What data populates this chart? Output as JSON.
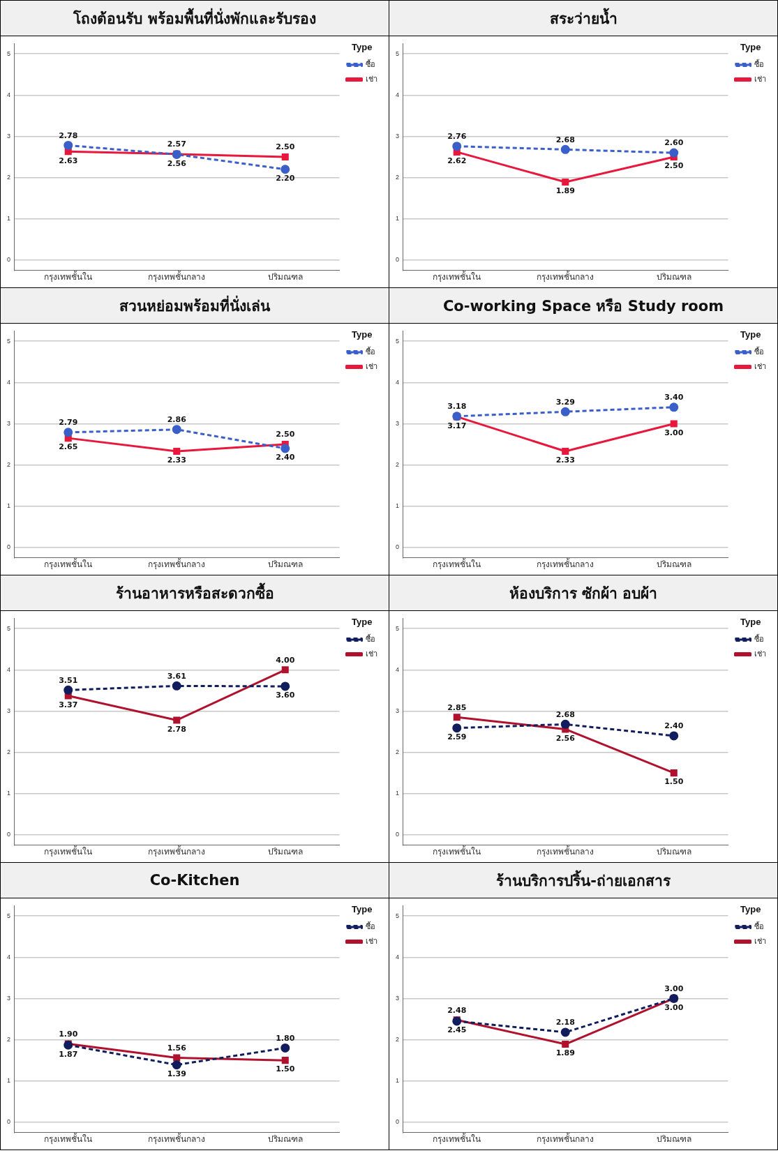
{
  "chart_data": [
    {
      "type": "line",
      "title": "โถงต้อนรับ พร้อมพื้นที่นั่งพักและรับรอง",
      "categories": [
        "กรุงเทพชั้นใน",
        "กรุงเทพชั้นกลาง",
        "ปริมณฑล"
      ],
      "legend_title": "Type",
      "legend": "top right",
      "grid": "y",
      "ylim": [
        -0.25,
        5.25
      ],
      "yticks": [
        0,
        1,
        2,
        3,
        4,
        5
      ],
      "series": [
        {
          "name": "ซื้อ",
          "color": "#3a5fc8",
          "values": [
            2.78,
            2.56,
            2.2
          ],
          "value_labels": [
            "2.78",
            "2.56",
            "2.20"
          ],
          "marker": "circle",
          "line_style": "dashed"
        },
        {
          "name": "เช่า",
          "color": "#e8173c",
          "values": [
            2.63,
            2.57,
            2.5
          ],
          "value_labels": [
            "2.63",
            "2.57",
            "2.50"
          ],
          "marker": "square",
          "line_style": "solid"
        }
      ]
    },
    {
      "type": "line",
      "title": "สระว่ายน้ำ",
      "categories": [
        "กรุงเทพชั้นใน",
        "กรุงเทพชั้นกลาง",
        "ปริมณฑล"
      ],
      "legend_title": "Type",
      "legend": "top right",
      "grid": "y",
      "ylim": [
        -0.25,
        5.25
      ],
      "yticks": [
        0,
        1,
        2,
        3,
        4,
        5
      ],
      "series": [
        {
          "name": "ซื้อ",
          "color": "#3a5fc8",
          "values": [
            2.76,
            2.68,
            2.6
          ],
          "value_labels": [
            "2.76",
            "2.68",
            "2.60"
          ],
          "marker": "circle",
          "line_style": "dashed"
        },
        {
          "name": "เช่า",
          "color": "#e8173c",
          "values": [
            2.62,
            1.89,
            2.5
          ],
          "value_labels": [
            "2.62",
            "1.89",
            "2.50"
          ],
          "marker": "square",
          "line_style": "solid"
        }
      ]
    },
    {
      "type": "line",
      "title": "สวนหย่อมพร้อมที่นั่งเล่น",
      "categories": [
        "กรุงเทพชั้นใน",
        "กรุงเทพชั้นกลาง",
        "ปริมณฑล"
      ],
      "legend_title": "Type",
      "legend": "top right",
      "grid": "y",
      "ylim": [
        -0.25,
        5.25
      ],
      "yticks": [
        0,
        1,
        2,
        3,
        4,
        5
      ],
      "series": [
        {
          "name": "ซื้อ",
          "color": "#3a5fc8",
          "values": [
            2.79,
            2.86,
            2.4
          ],
          "value_labels": [
            "2.79",
            "2.86",
            "2.40"
          ],
          "marker": "circle",
          "line_style": "dashed"
        },
        {
          "name": "เช่า",
          "color": "#e8173c",
          "values": [
            2.65,
            2.33,
            2.5
          ],
          "value_labels": [
            "2.65",
            "2.33",
            "2.50"
          ],
          "marker": "square",
          "line_style": "solid"
        }
      ]
    },
    {
      "type": "line",
      "title": "Co-working Space หรือ Study room",
      "categories": [
        "กรุงเทพชั้นใน",
        "กรุงเทพชั้นกลาง",
        "ปริมณฑล"
      ],
      "legend_title": "Type",
      "legend": "top right",
      "grid": "y",
      "ylim": [
        -0.25,
        5.25
      ],
      "yticks": [
        0,
        1,
        2,
        3,
        4,
        5
      ],
      "series": [
        {
          "name": "ซื้อ",
          "color": "#3a5fc8",
          "values": [
            3.18,
            3.29,
            3.4
          ],
          "value_labels": [
            "3.18",
            "3.29",
            "3.40"
          ],
          "marker": "circle",
          "line_style": "dashed"
        },
        {
          "name": "เช่า",
          "color": "#e8173c",
          "values": [
            3.17,
            2.33,
            3.0
          ],
          "value_labels": [
            "3.17",
            "2.33",
            "3.00"
          ],
          "marker": "square",
          "line_style": "solid"
        }
      ]
    },
    {
      "type": "line",
      "title": "ร้านอาหารหรือสะดวกซื้อ",
      "categories": [
        "กรุงเทพชั้นใน",
        "กรุงเทพชั้นกลาง",
        "ปริมณฑล"
      ],
      "legend_title": "Type",
      "legend": "top right",
      "grid": "y",
      "ylim": [
        -0.25,
        5.25
      ],
      "yticks": [
        0,
        1,
        2,
        3,
        4,
        5
      ],
      "series": [
        {
          "name": "ซื้อ",
          "color": "#121d5e",
          "values": [
            3.51,
            3.61,
            3.6
          ],
          "value_labels": [
            "3.51",
            "3.61",
            "3.60"
          ],
          "marker": "circle",
          "line_style": "dashed"
        },
        {
          "name": "เช่า",
          "color": "#b0122e",
          "values": [
            3.37,
            2.78,
            4.0
          ],
          "value_labels": [
            "3.37",
            "2.78",
            "4.00"
          ],
          "marker": "square",
          "line_style": "solid"
        }
      ]
    },
    {
      "type": "line",
      "title": "ห้องบริการ ซักผ้า อบผ้า",
      "categories": [
        "กรุงเทพชั้นใน",
        "กรุงเทพชั้นกลาง",
        "ปริมณฑล"
      ],
      "legend_title": "Type",
      "legend": "top right",
      "grid": "y",
      "ylim": [
        -0.25,
        5.25
      ],
      "yticks": [
        0,
        1,
        2,
        3,
        4,
        5
      ],
      "series": [
        {
          "name": "ซื้อ",
          "color": "#121d5e",
          "values": [
            2.59,
            2.68,
            2.4
          ],
          "value_labels": [
            "2.59",
            "2.68",
            "2.40"
          ],
          "marker": "circle",
          "line_style": "dashed"
        },
        {
          "name": "เช่า",
          "color": "#b0122e",
          "values": [
            2.85,
            2.56,
            1.5
          ],
          "value_labels": [
            "2.85",
            "2.56",
            "1.50"
          ],
          "marker": "square",
          "line_style": "solid"
        }
      ]
    },
    {
      "type": "line",
      "title": "Co-Kitchen",
      "categories": [
        "กรุงเทพชั้นใน",
        "กรุงเทพชั้นกลาง",
        "ปริมณฑล"
      ],
      "legend_title": "Type",
      "legend": "top right",
      "grid": "y",
      "ylim": [
        -0.25,
        5.25
      ],
      "yticks": [
        0,
        1,
        2,
        3,
        4,
        5
      ],
      "series": [
        {
          "name": "ซื้อ",
          "color": "#121d5e",
          "values": [
            1.87,
            1.39,
            1.8
          ],
          "value_labels": [
            "1.87",
            "1.39",
            "1.80"
          ],
          "marker": "circle",
          "line_style": "dashed"
        },
        {
          "name": "เช่า",
          "color": "#b0122e",
          "values": [
            1.9,
            1.56,
            1.5
          ],
          "value_labels": [
            "1.90",
            "1.56",
            "1.50"
          ],
          "marker": "square",
          "line_style": "solid"
        }
      ]
    },
    {
      "type": "line",
      "title": "ร้านบริการปริ้น-ถ่ายเอกสาร",
      "categories": [
        "กรุงเทพชั้นใน",
        "กรุงเทพชั้นกลาง",
        "ปริมณฑล"
      ],
      "legend_title": "Type",
      "legend": "top right",
      "grid": "y",
      "ylim": [
        -0.25,
        5.25
      ],
      "yticks": [
        0,
        1,
        2,
        3,
        4,
        5
      ],
      "series": [
        {
          "name": "ซื้อ",
          "color": "#121d5e",
          "values": [
            2.45,
            2.18,
            3.0
          ],
          "value_labels": [
            "2.45",
            "2.18",
            "3.00"
          ],
          "marker": "circle",
          "line_style": "dashed"
        },
        {
          "name": "เช่า",
          "color": "#b0122e",
          "values": [
            2.48,
            1.89,
            3.0
          ],
          "value_labels": [
            "2.48",
            "1.89",
            "3.00"
          ],
          "marker": "square",
          "line_style": "solid"
        }
      ]
    }
  ]
}
